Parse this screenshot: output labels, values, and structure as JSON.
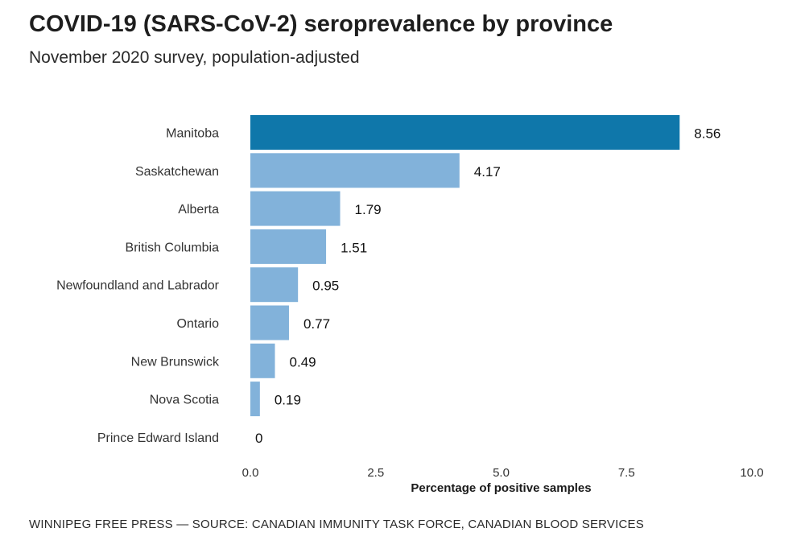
{
  "header": {
    "title": "COVID-19 (SARS-CoV-2) seroprevalence by province",
    "subtitle": "November 2020 survey, population-adjusted"
  },
  "footer": {
    "source": "WINNIPEG FREE PRESS — SOURCE: CANADIAN IMMUNITY TASK FORCE, CANADIAN BLOOD SERVICES"
  },
  "chart_data": {
    "type": "bar",
    "orientation": "horizontal",
    "title": "COVID-19 (SARS-CoV-2) seroprevalence by province",
    "subtitle": "November 2020 survey, population-adjusted",
    "xlabel": "Percentage of positive samples",
    "ylabel": "",
    "categories": [
      "Manitoba",
      "Saskatchewan",
      "Alberta",
      "British Columbia",
      "Newfoundland and Labrador",
      "Ontario",
      "New Brunswick",
      "Nova Scotia",
      "Prince Edward Island"
    ],
    "values": [
      8.56,
      4.17,
      1.79,
      1.51,
      0.95,
      0.77,
      0.49,
      0.19,
      0
    ],
    "value_labels": [
      "8.56",
      "4.17",
      "1.79",
      "1.51",
      "0.95",
      "0.77",
      "0.49",
      "0.19",
      "0"
    ],
    "xlim": [
      0,
      10
    ],
    "xticks": [
      0,
      2.5,
      5,
      7.5,
      10
    ],
    "xtick_labels": [
      "0.0",
      "2.5",
      "5.0",
      "7.5",
      "10.0"
    ],
    "highlight_category": "Manitoba",
    "colors": {
      "highlight": "#0f77aa",
      "default": "#82b2da"
    },
    "grid": false,
    "legend": "none"
  }
}
